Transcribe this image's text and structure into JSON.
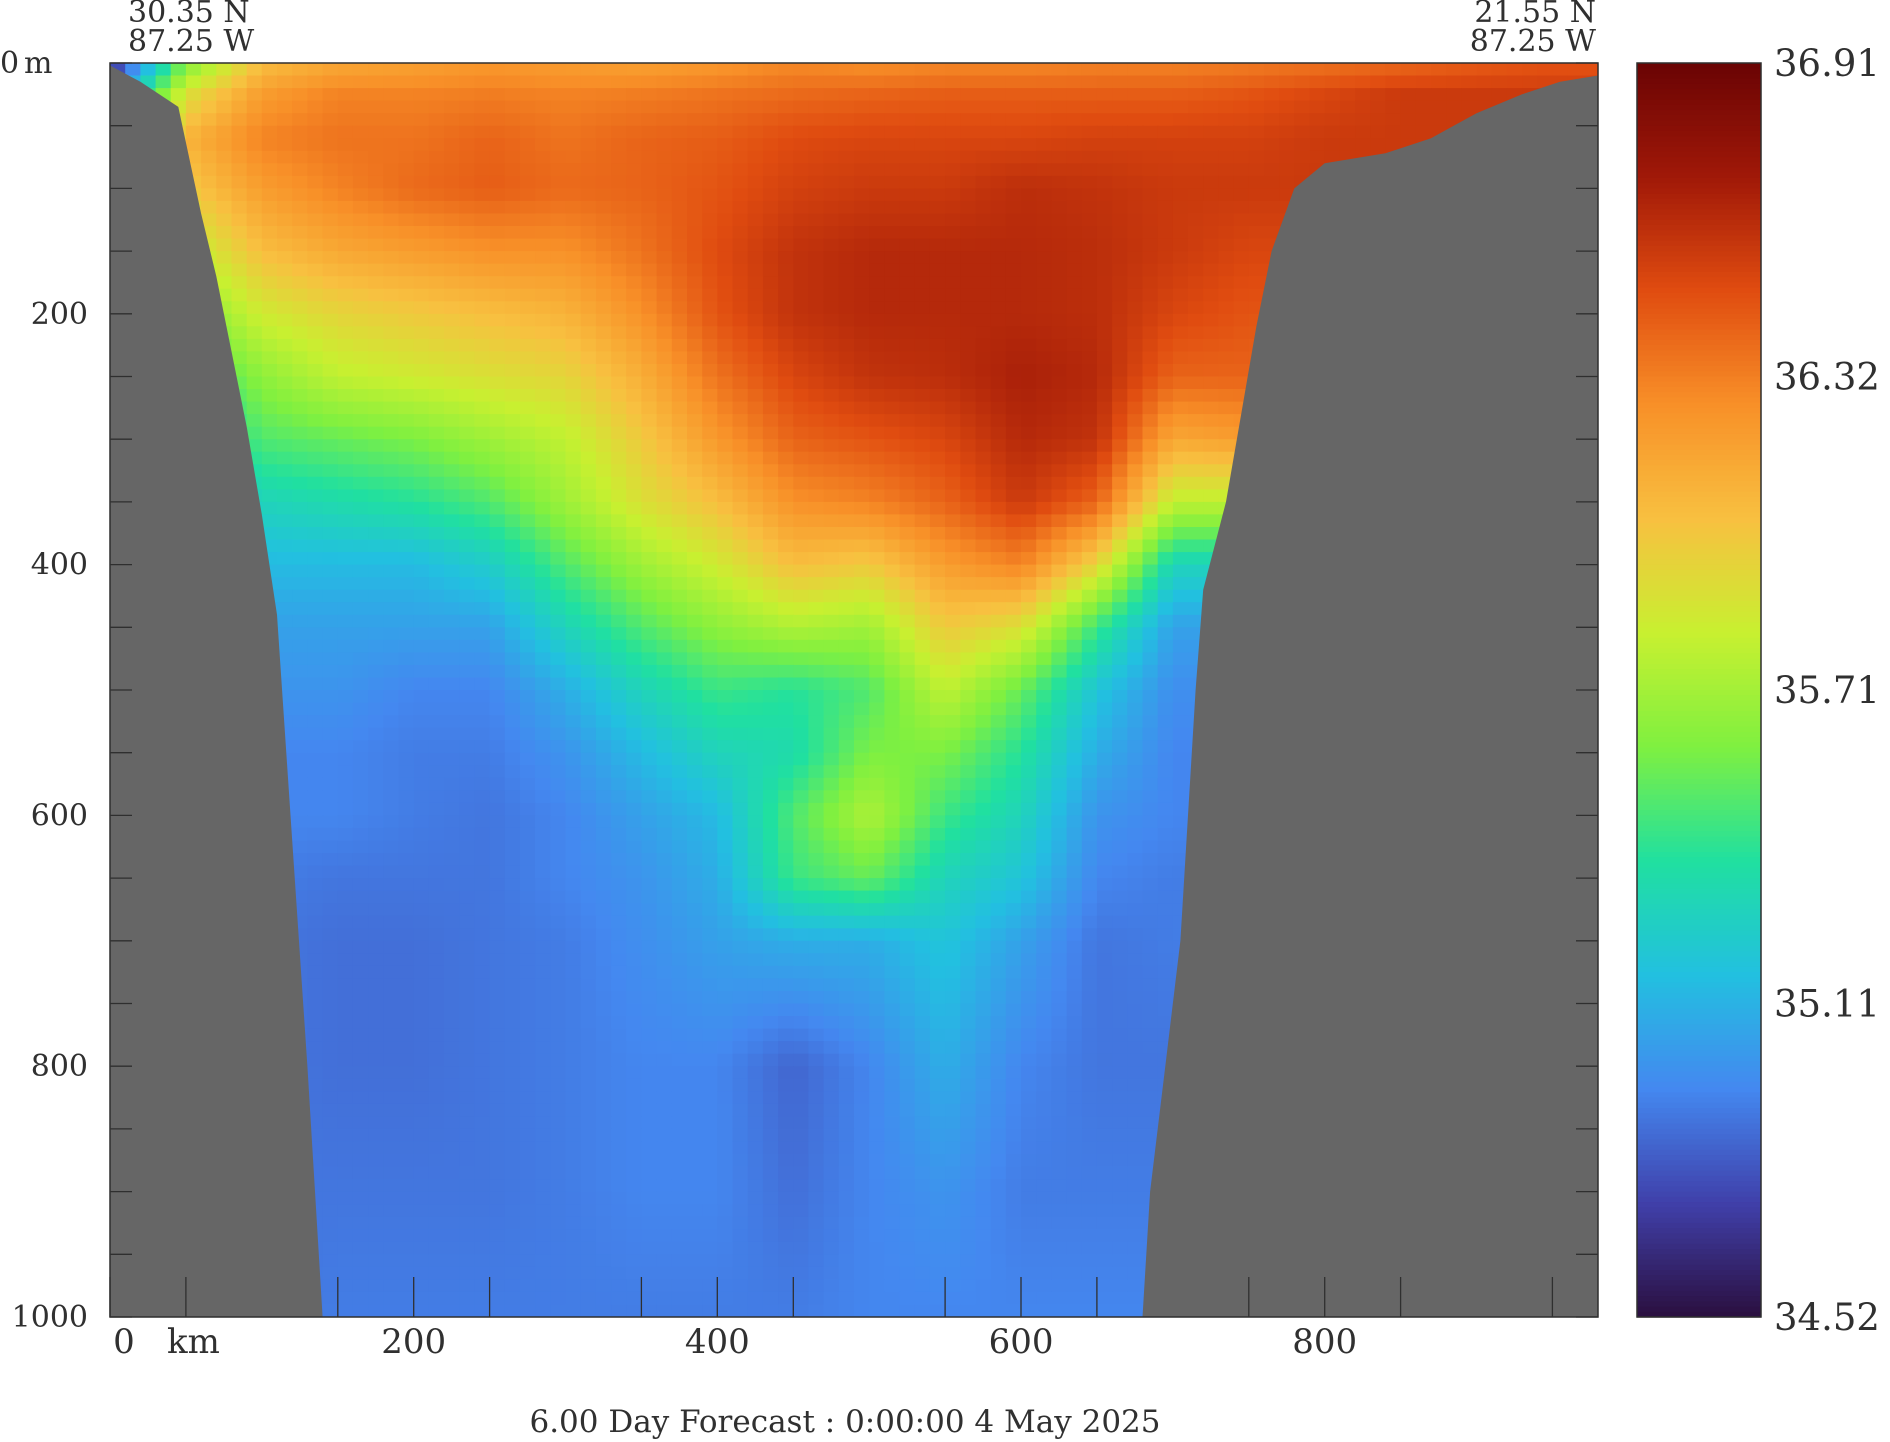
{
  "chart_data": {
    "type": "heatmap",
    "title": "",
    "corner_labels": {
      "start_lat": "30.35 N",
      "start_lon": "87.25 W",
      "end_lat": "21.55 N",
      "end_lon": "87.25 W"
    },
    "x_axis": {
      "unit_label": "km",
      "range": [
        0,
        980
      ],
      "tick_labels": [
        "0",
        "200",
        "400",
        "600",
        "800"
      ],
      "ticks": [
        0,
        200,
        400,
        600,
        800
      ],
      "minor_ticks": [
        50,
        150,
        250,
        350,
        450,
        550,
        650,
        750,
        850,
        950
      ]
    },
    "y_axis": {
      "unit_label": "m",
      "range": [
        0,
        1000
      ],
      "inverted": true,
      "tick_labels": [
        "0",
        "200",
        "400",
        "600",
        "800",
        "1000"
      ],
      "ticks": [
        0,
        200,
        400,
        600,
        800,
        1000
      ],
      "minor_ticks": [
        50,
        100,
        150,
        250,
        300,
        350,
        450,
        500,
        550,
        650,
        700,
        750,
        850,
        900,
        950
      ]
    },
    "colorbar": {
      "min": 34.52,
      "max": 36.91,
      "tick_labels": [
        "36.91",
        "36.32",
        "35.71",
        "35.11",
        "34.52"
      ]
    },
    "seafloor_left": [
      [
        -3,
        0
      ],
      [
        20,
        15
      ],
      [
        45,
        35
      ],
      [
        60,
        120
      ],
      [
        70,
        170
      ],
      [
        80,
        230
      ],
      [
        90,
        290
      ],
      [
        100,
        360
      ],
      [
        110,
        440
      ],
      [
        120,
        620
      ],
      [
        130,
        800
      ],
      [
        135,
        900
      ],
      [
        140,
        1000
      ]
    ],
    "seafloor_right": [
      [
        680,
        1000
      ],
      [
        685,
        900
      ],
      [
        695,
        800
      ],
      [
        705,
        700
      ],
      [
        710,
        600
      ],
      [
        715,
        500
      ],
      [
        720,
        420
      ],
      [
        735,
        350
      ],
      [
        745,
        280
      ],
      [
        755,
        210
      ],
      [
        765,
        150
      ],
      [
        780,
        100
      ],
      [
        800,
        80
      ],
      [
        840,
        72
      ],
      [
        870,
        60
      ],
      [
        900,
        40
      ],
      [
        930,
        25
      ],
      [
        955,
        15
      ],
      [
        980,
        10
      ]
    ],
    "salinity_field": {
      "x": [
        0,
        50,
        100,
        150,
        200,
        250,
        300,
        350,
        400,
        450,
        500,
        550,
        600,
        650,
        700,
        750,
        800,
        850,
        900,
        950,
        980
      ],
      "depth": [
        0,
        25,
        60,
        100,
        150,
        200,
        250,
        300,
        350,
        400,
        450,
        500,
        550,
        600,
        650,
        700,
        800,
        900,
        1000
      ],
      "values": [
        [
          34.6,
          35.6,
          36.05,
          36.15,
          36.18,
          36.22,
          36.2,
          36.18,
          36.22,
          36.28,
          36.25,
          36.28,
          36.28,
          36.3,
          36.3,
          36.32,
          36.35,
          36.38,
          36.42,
          36.45,
          36.45
        ],
        [
          35.0,
          35.9,
          36.2,
          36.3,
          36.3,
          36.32,
          36.3,
          36.32,
          36.35,
          36.38,
          36.4,
          36.42,
          36.42,
          36.42,
          36.42,
          36.45,
          36.5,
          36.55,
          36.55,
          36.55,
          36.55
        ],
        [
          35.3,
          36.1,
          36.3,
          36.35,
          36.35,
          36.4,
          36.35,
          36.4,
          36.42,
          36.48,
          36.5,
          36.5,
          36.5,
          36.52,
          36.52,
          36.52,
          36.55,
          36.55,
          36.55,
          36.55,
          36.55
        ],
        [
          35.3,
          36.0,
          36.2,
          36.3,
          36.38,
          36.42,
          36.38,
          36.4,
          36.45,
          36.52,
          36.55,
          36.55,
          36.6,
          36.58,
          36.55,
          36.55,
          36.55,
          36.55,
          36.55,
          36.55,
          36.55
        ],
        [
          35.2,
          35.8,
          36.05,
          36.15,
          36.2,
          36.25,
          36.25,
          36.35,
          36.48,
          36.58,
          36.62,
          36.62,
          36.62,
          36.6,
          36.55,
          36.5,
          36.5,
          36.5,
          36.5,
          36.5,
          36.5
        ],
        [
          35.1,
          35.6,
          35.85,
          35.95,
          36.0,
          36.05,
          36.1,
          36.25,
          36.45,
          36.58,
          36.62,
          36.62,
          36.62,
          36.6,
          36.5,
          36.45,
          36.45,
          36.45,
          36.45,
          36.45,
          36.45
        ],
        [
          35.0,
          35.4,
          35.65,
          35.8,
          35.85,
          35.9,
          35.95,
          36.12,
          36.35,
          36.5,
          36.58,
          36.6,
          36.66,
          36.62,
          36.4,
          36.4,
          36.4,
          36.4,
          36.4,
          36.4,
          36.4
        ],
        [
          34.95,
          35.25,
          35.5,
          35.55,
          35.6,
          35.7,
          35.8,
          36.0,
          36.22,
          36.4,
          36.45,
          36.5,
          36.62,
          36.58,
          36.15,
          36.2,
          36.2,
          36.2,
          36.2,
          36.2,
          36.2
        ],
        [
          34.9,
          35.15,
          35.3,
          35.35,
          35.4,
          35.5,
          35.7,
          35.9,
          36.05,
          36.25,
          36.3,
          36.4,
          36.55,
          36.4,
          35.8,
          35.8,
          35.8,
          35.8,
          35.8,
          35.8,
          35.8
        ],
        [
          34.9,
          35.05,
          35.15,
          35.15,
          35.15,
          35.25,
          35.5,
          35.7,
          35.85,
          36.05,
          36.0,
          36.2,
          36.3,
          35.95,
          35.3,
          35.3,
          35.3,
          35.3,
          35.3,
          35.3,
          35.3
        ],
        [
          34.88,
          34.98,
          35.05,
          35.05,
          35.05,
          35.05,
          35.3,
          35.5,
          35.65,
          35.75,
          35.7,
          36.0,
          35.9,
          35.45,
          35.05,
          35.05,
          35.05,
          35.05,
          35.05,
          35.05,
          35.05
        ],
        [
          34.88,
          34.95,
          35.0,
          35.0,
          34.95,
          34.95,
          35.1,
          35.3,
          35.45,
          35.4,
          35.5,
          35.8,
          35.55,
          35.2,
          34.98,
          34.98,
          34.98,
          34.98,
          34.98,
          34.98,
          34.98
        ],
        [
          34.88,
          34.95,
          34.95,
          34.95,
          34.92,
          34.92,
          35.0,
          35.15,
          35.3,
          35.35,
          35.6,
          35.6,
          35.4,
          35.1,
          34.95,
          34.95,
          34.95,
          34.95,
          34.95,
          34.95,
          34.95
        ],
        [
          34.88,
          34.95,
          34.95,
          34.95,
          34.92,
          34.9,
          34.95,
          35.05,
          35.15,
          35.5,
          35.75,
          35.45,
          35.3,
          35.0,
          34.95,
          34.95,
          34.95,
          34.95,
          34.95,
          34.95,
          34.95
        ],
        [
          34.88,
          34.92,
          34.92,
          34.9,
          34.9,
          34.9,
          34.95,
          35.0,
          35.1,
          35.45,
          35.55,
          35.3,
          35.2,
          34.95,
          34.92,
          34.92,
          34.92,
          34.92,
          34.92,
          34.92,
          34.92
        ],
        [
          34.88,
          34.9,
          34.9,
          34.88,
          34.88,
          34.9,
          34.92,
          34.98,
          35.05,
          35.1,
          35.1,
          35.2,
          35.05,
          34.9,
          34.92,
          34.92,
          34.92,
          34.92,
          34.92,
          34.92,
          34.92
        ],
        [
          34.88,
          34.9,
          34.9,
          34.88,
          34.88,
          34.9,
          34.92,
          34.95,
          34.95,
          34.85,
          34.95,
          35.1,
          34.95,
          34.9,
          34.9,
          34.9,
          34.9,
          34.9,
          34.9,
          34.9,
          34.9
        ],
        [
          34.88,
          34.9,
          34.9,
          34.9,
          34.9,
          34.9,
          34.92,
          34.95,
          34.95,
          34.88,
          34.95,
          35.0,
          34.92,
          34.92,
          34.92,
          34.92,
          34.92,
          34.92,
          34.92,
          34.92,
          34.92
        ],
        [
          34.88,
          34.9,
          34.9,
          34.92,
          34.92,
          34.92,
          34.92,
          34.92,
          34.92,
          34.92,
          34.95,
          34.95,
          34.95,
          34.95,
          34.95,
          34.95,
          34.95,
          34.95,
          34.95,
          34.95,
          34.95
        ]
      ]
    }
  },
  "footer": {
    "forecast_text": "6.00 Day Forecast :  0:00:00   4 May 2025"
  },
  "colors": {
    "land": "#666666",
    "frame": "#2f2f2f",
    "colormap": [
      "#2a0f3f",
      "#4040aa",
      "#4488f0",
      "#22c0e0",
      "#20e0a0",
      "#7ff040",
      "#c8f030",
      "#f8c040",
      "#f89028",
      "#e04c10",
      "#a01808",
      "#6a0404"
    ]
  }
}
